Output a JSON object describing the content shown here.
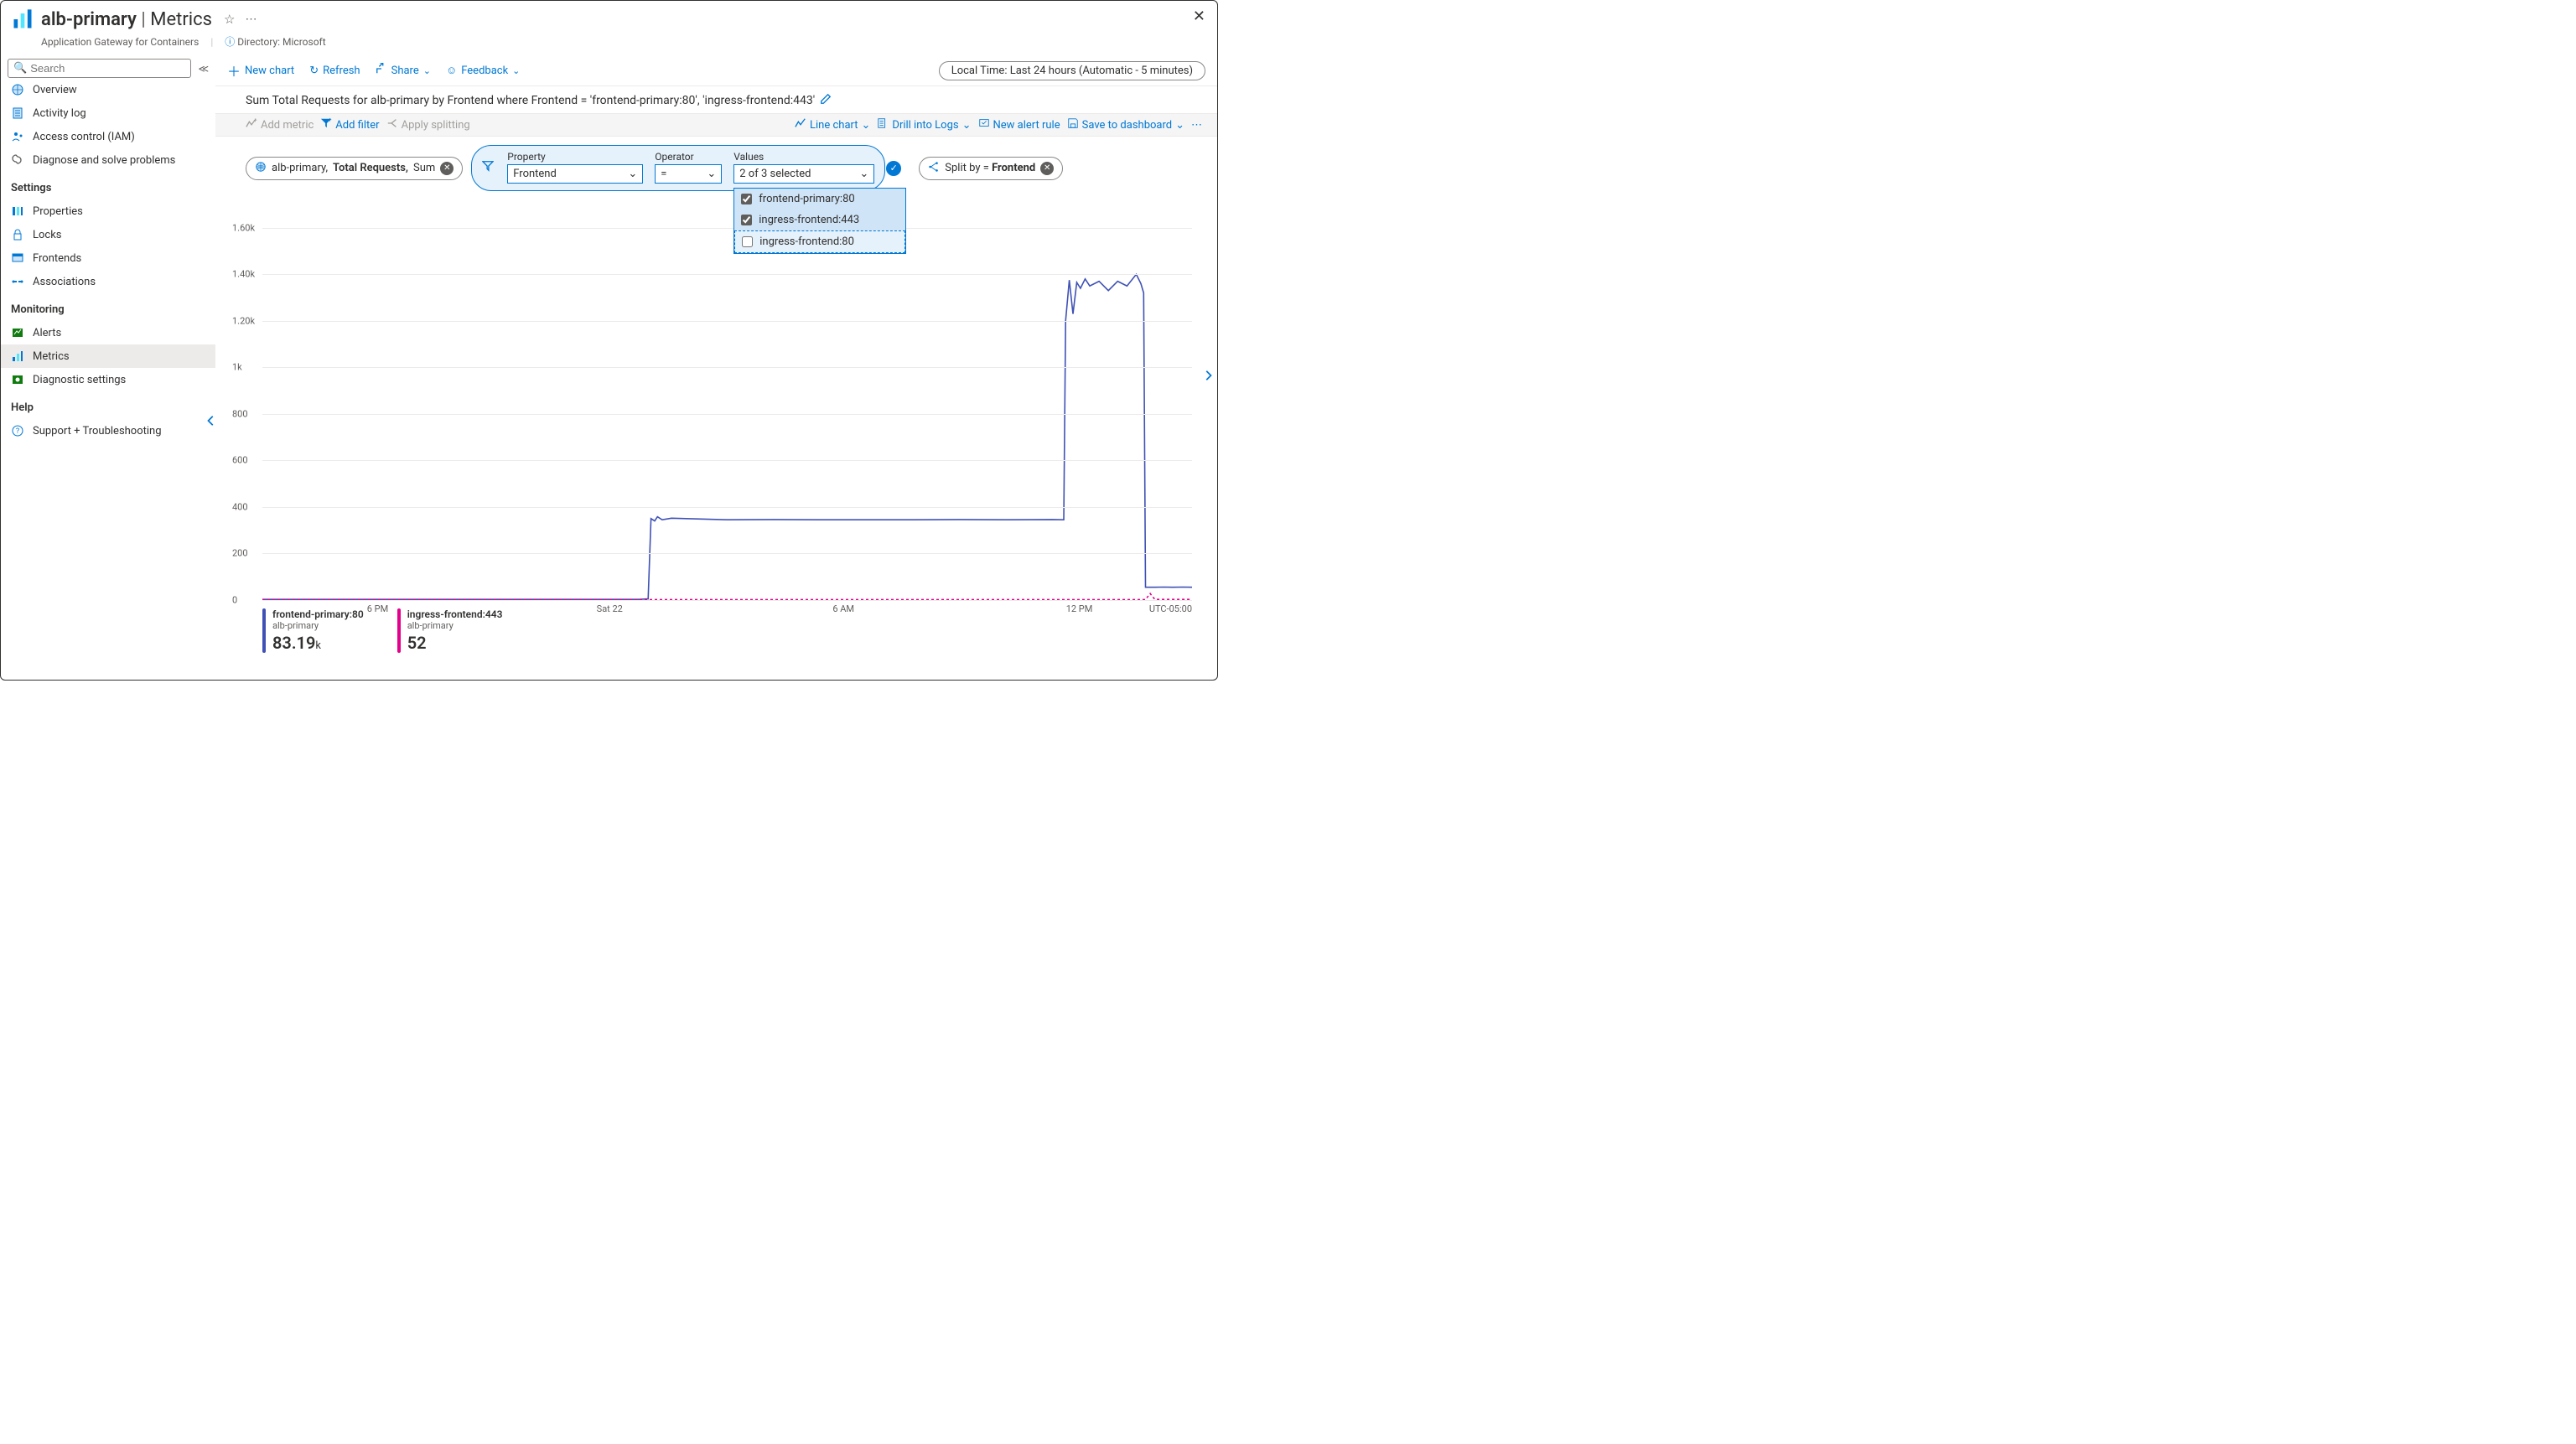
{
  "header": {
    "resource_name": "alb-primary",
    "page_name": "Metrics",
    "resource_type": "Application Gateway for Containers",
    "directory_label": "Directory: Microsoft"
  },
  "sidebar": {
    "search_placeholder": "Search",
    "groups": [
      {
        "title": null,
        "items": [
          {
            "icon": "overview",
            "label": "Overview",
            "active": false
          },
          {
            "icon": "activity",
            "label": "Activity log",
            "active": false
          },
          {
            "icon": "iam",
            "label": "Access control (IAM)",
            "active": false
          },
          {
            "icon": "diagnose",
            "label": "Diagnose and solve problems",
            "active": false
          }
        ]
      },
      {
        "title": "Settings",
        "items": [
          {
            "icon": "properties",
            "label": "Properties",
            "active": false
          },
          {
            "icon": "locks",
            "label": "Locks",
            "active": false
          },
          {
            "icon": "frontends",
            "label": "Frontends",
            "active": false
          },
          {
            "icon": "associations",
            "label": "Associations",
            "active": false
          }
        ]
      },
      {
        "title": "Monitoring",
        "items": [
          {
            "icon": "alerts",
            "label": "Alerts",
            "active": false
          },
          {
            "icon": "metrics",
            "label": "Metrics",
            "active": true
          },
          {
            "icon": "diagsettings",
            "label": "Diagnostic settings",
            "active": false
          }
        ]
      },
      {
        "title": "Help",
        "items": [
          {
            "icon": "support",
            "label": "Support + Troubleshooting",
            "active": false
          }
        ]
      }
    ]
  },
  "toolbar": {
    "new_chart": "New chart",
    "refresh": "Refresh",
    "share": "Share",
    "feedback": "Feedback",
    "time_range": "Local Time: Last 24 hours (Automatic - 5 minutes)"
  },
  "chart_header": {
    "title": "Sum Total Requests for alb-primary by Frontend where Frontend = 'frontend-primary:80', 'ingress-frontend:443'"
  },
  "chip_bar": {
    "add_metric": "Add metric",
    "add_filter": "Add filter",
    "apply_splitting": "Apply splitting",
    "line_chart": "Line chart",
    "drill_logs": "Drill into Logs",
    "new_alert": "New alert rule",
    "save_dashboard": "Save to dashboard"
  },
  "metric_pill": {
    "scope": "alb-primary,",
    "metric": "Total Requests,",
    "agg": "Sum"
  },
  "filter_panel": {
    "property_label": "Property",
    "property_value": "Frontend",
    "operator_label": "Operator",
    "operator_value": "=",
    "values_label": "Values",
    "values_display": "2 of 3 selected",
    "options": [
      {
        "label": "frontend-primary:80",
        "checked": true
      },
      {
        "label": "ingress-frontend:443",
        "checked": true
      },
      {
        "label": "ingress-frontend:80",
        "checked": false
      }
    ]
  },
  "split_pill": {
    "prefix": "Split by = ",
    "value": "Frontend"
  },
  "chart": {
    "type": "line",
    "y_ticks": [
      0,
      200,
      400,
      600,
      800,
      1000,
      1200,
      1400,
      1600
    ],
    "y_tick_labels": [
      "0",
      "200",
      "400",
      "600",
      "800",
      "1k",
      "1.20k",
      "1.40k",
      "1.60k"
    ],
    "y_max": 1700,
    "x_ticks": [
      {
        "pos": 0.126,
        "label": "6 PM"
      },
      {
        "pos": 0.373,
        "label": "Sat 22"
      },
      {
        "pos": 0.627,
        "label": "6 AM"
      },
      {
        "pos": 0.878,
        "label": "12 PM"
      }
    ],
    "tz_label": "UTC-05:00",
    "grid_color": "#edebe9",
    "series": [
      {
        "name": "frontend-primary:80",
        "color": "#3f51b5",
        "dash": "none",
        "width": 1.6,
        "points": [
          [
            0.0,
            3
          ],
          [
            0.405,
            3
          ],
          [
            0.415,
            5
          ],
          [
            0.418,
            350
          ],
          [
            0.422,
            340
          ],
          [
            0.425,
            358
          ],
          [
            0.43,
            345
          ],
          [
            0.44,
            352
          ],
          [
            0.5,
            345
          ],
          [
            0.55,
            346
          ],
          [
            0.6,
            345
          ],
          [
            0.65,
            345
          ],
          [
            0.7,
            345
          ],
          [
            0.75,
            346
          ],
          [
            0.8,
            345
          ],
          [
            0.85,
            346
          ],
          [
            0.862,
            345
          ],
          [
            0.864,
            1200
          ],
          [
            0.868,
            1375
          ],
          [
            0.872,
            1230
          ],
          [
            0.876,
            1365
          ],
          [
            0.88,
            1340
          ],
          [
            0.885,
            1380
          ],
          [
            0.89,
            1350
          ],
          [
            0.9,
            1370
          ],
          [
            0.91,
            1330
          ],
          [
            0.92,
            1370
          ],
          [
            0.93,
            1350
          ],
          [
            0.94,
            1400
          ],
          [
            0.945,
            1360
          ],
          [
            0.948,
            1320
          ],
          [
            0.95,
            55
          ],
          [
            0.96,
            55
          ],
          [
            0.97,
            56
          ],
          [
            0.98,
            55
          ],
          [
            0.99,
            56
          ],
          [
            1.0,
            55
          ]
        ]
      },
      {
        "name": "ingress-frontend:443",
        "color": "#e3008c",
        "dash": "3,3",
        "width": 1.6,
        "points": [
          [
            0.0,
            2
          ],
          [
            0.1,
            2
          ],
          [
            0.2,
            2
          ],
          [
            0.3,
            2
          ],
          [
            0.4,
            2
          ],
          [
            0.5,
            2
          ],
          [
            0.6,
            2
          ],
          [
            0.7,
            2
          ],
          [
            0.8,
            2
          ],
          [
            0.9,
            2
          ],
          [
            0.95,
            2
          ],
          [
            0.955,
            28
          ],
          [
            0.96,
            3
          ],
          [
            0.98,
            3
          ],
          [
            1.0,
            3
          ]
        ]
      }
    ]
  },
  "legend": [
    {
      "color": "#3f51b5",
      "series": "frontend-primary:80",
      "scope": "alb-primary",
      "value": "83.19",
      "unit": "k"
    },
    {
      "color": "#e3008c",
      "series": "ingress-frontend:443",
      "scope": "alb-primary",
      "value": "52",
      "unit": ""
    }
  ]
}
